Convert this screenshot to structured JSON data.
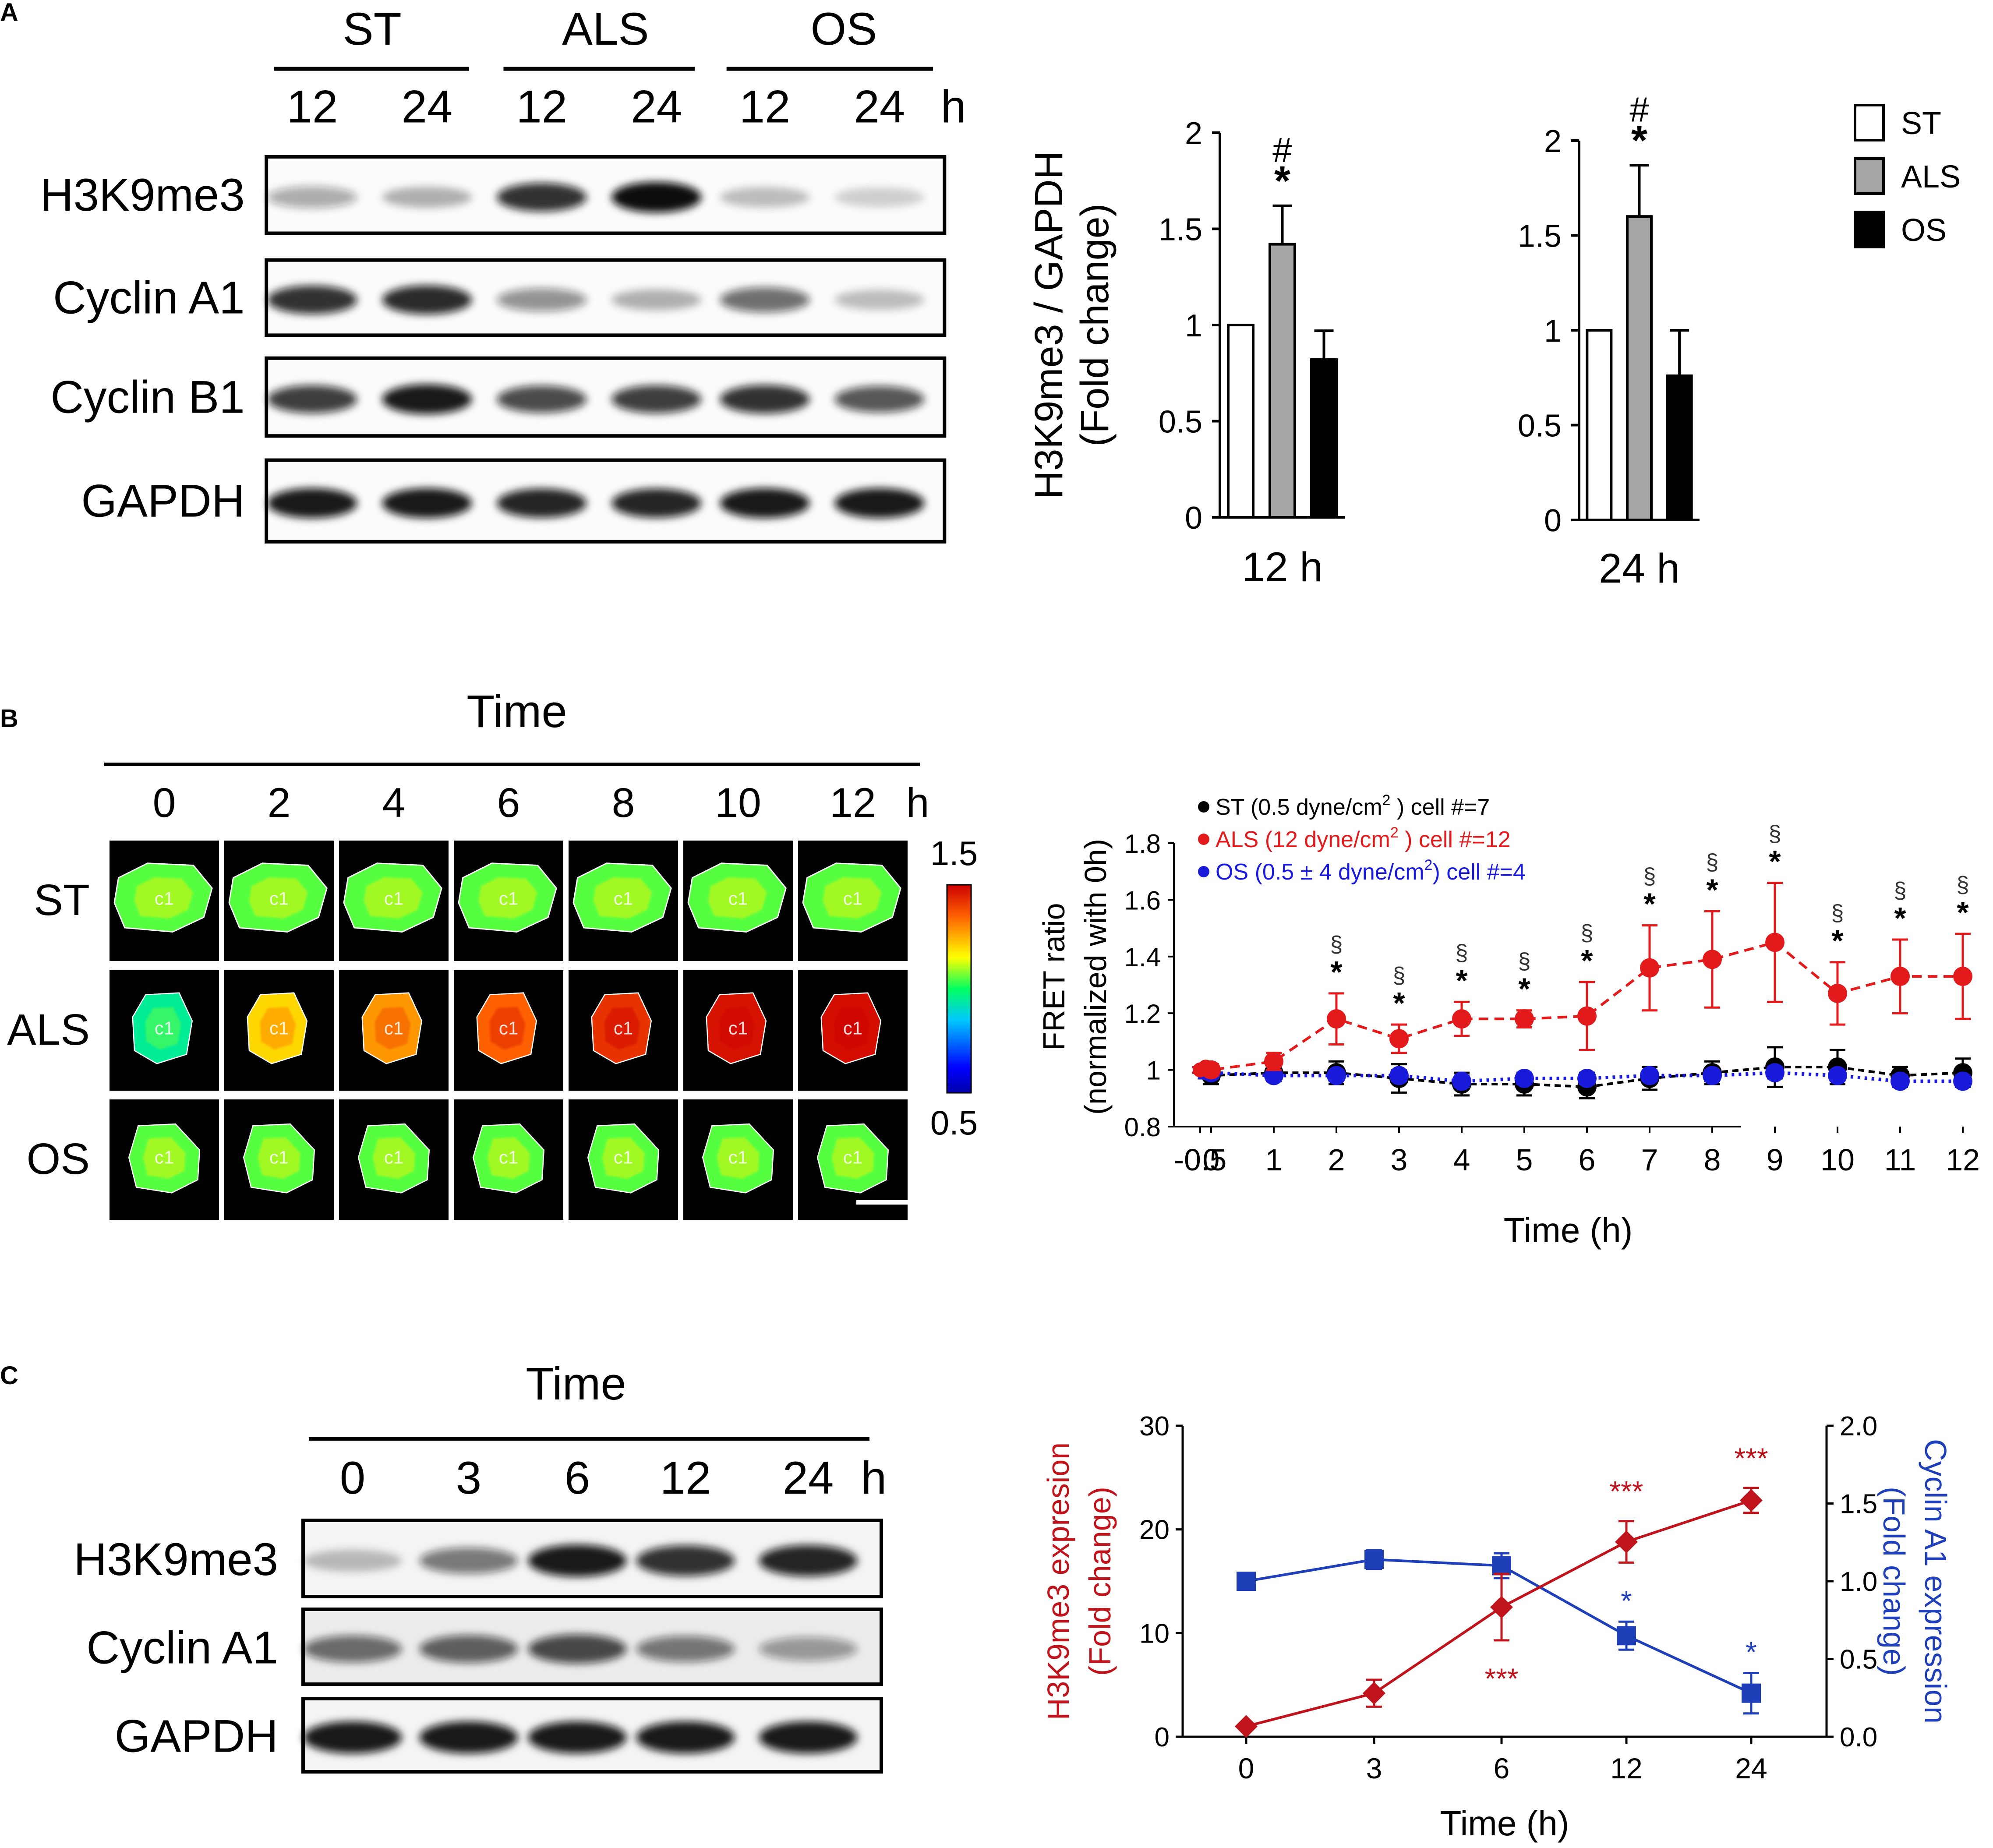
{
  "panels": {
    "a": "A",
    "b": "B",
    "c": "C"
  },
  "colors": {
    "st": "#ffffff",
    "als": "#a6a6a6",
    "os": "#000000",
    "red": "#e31a1c",
    "blue": "#1a1adb",
    "dred": "#c0141c",
    "dblue": "#1f3fb8"
  },
  "blotA": {
    "groups": [
      "ST",
      "ALS",
      "OS"
    ],
    "times": [
      "12",
      "24",
      "12",
      "24",
      "12",
      "24"
    ],
    "unit": "h",
    "rows": [
      "H3K9me3",
      "Cyclin A1",
      "Cyclin B1",
      "GAPDH"
    ],
    "intensity": {
      "H3K9me3": [
        0.35,
        0.3,
        0.85,
        1.0,
        0.25,
        0.18
      ],
      "Cyclin A1": [
        0.85,
        0.88,
        0.45,
        0.3,
        0.6,
        0.25
      ],
      "Cyclin B1": [
        0.8,
        0.95,
        0.75,
        0.8,
        0.85,
        0.7
      ],
      "GAPDH": [
        0.95,
        0.95,
        0.9,
        0.9,
        0.95,
        0.95
      ]
    }
  },
  "legendA": [
    "ST",
    "ALS",
    "OS"
  ],
  "ylabelA": [
    "H3K9me3 / GAPDH",
    "(Fold change)"
  ],
  "chart_data": [
    {
      "type": "bar",
      "id": "a12",
      "xlabel": "12 h",
      "ylabel": "H3K9me3 / GAPDH (Fold change)",
      "categories": [
        "ST",
        "ALS",
        "OS"
      ],
      "values": [
        1.0,
        1.42,
        0.82
      ],
      "errors": [
        0,
        0.2,
        0.15
      ],
      "ylim": [
        0,
        2
      ],
      "yticks": [
        "0",
        "0.5",
        "1",
        "1.5",
        "2"
      ],
      "annotations": {
        "ALS": [
          "#",
          "*"
        ]
      }
    },
    {
      "type": "bar",
      "id": "a24",
      "xlabel": "24 h",
      "categories": [
        "ST",
        "ALS",
        "OS"
      ],
      "values": [
        1.0,
        1.6,
        0.76
      ],
      "errors": [
        0,
        0.27,
        0.24
      ],
      "ylim": [
        0,
        2
      ],
      "yticks": [
        "0",
        "0.5",
        "1",
        "1.5",
        "2"
      ],
      "annotations": {
        "ALS": [
          "#",
          "*"
        ]
      }
    },
    {
      "type": "line",
      "id": "b",
      "xlabel": "Time (h)",
      "ylabel": [
        "FRET ratio",
        "(normalized with 0h)"
      ],
      "x_ticks": [
        "-0.5",
        "0",
        "1",
        "2",
        "3",
        "4",
        "5",
        "6",
        "7",
        "8",
        "9",
        "10",
        "11",
        "12"
      ],
      "ylim": [
        0.8,
        1.8
      ],
      "yticks": [
        "0.8",
        "1",
        "1.2",
        "1.4",
        "1.6",
        "1.8"
      ],
      "series": [
        {
          "name": "ST",
          "legend": [
            "ST (0.5 dyne/cm",
            "2",
            " ) cell #=7"
          ],
          "x": [
            -0.5,
            -0.25,
            0,
            1,
            2,
            3,
            4,
            5,
            6,
            7,
            8,
            9,
            10,
            11,
            12
          ],
          "y": [
            1.0,
            1.0,
            0.98,
            0.99,
            0.99,
            0.97,
            0.95,
            0.95,
            0.94,
            0.97,
            0.99,
            1.01,
            1.01,
            0.98,
            0.99
          ],
          "err": [
            0.01,
            0.02,
            0.03,
            0.03,
            0.04,
            0.05,
            0.04,
            0.04,
            0.04,
            0.04,
            0.04,
            0.07,
            0.06,
            0.03,
            0.05
          ]
        },
        {
          "name": "ALS",
          "legend": [
            "ALS (12 dyne/cm",
            "2",
            " ) cell #=12"
          ],
          "x": [
            -0.5,
            -0.25,
            0,
            1,
            2,
            3,
            4,
            5,
            6,
            7,
            8,
            9,
            10,
            11,
            12
          ],
          "y": [
            1.0,
            1.01,
            1.0,
            1.03,
            1.18,
            1.11,
            1.18,
            1.18,
            1.19,
            1.36,
            1.39,
            1.45,
            1.27,
            1.33,
            1.33
          ],
          "err": [
            0.01,
            0.01,
            0.02,
            0.03,
            0.09,
            0.05,
            0.06,
            0.03,
            0.12,
            0.15,
            0.17,
            0.21,
            0.11,
            0.13,
            0.15
          ]
        },
        {
          "name": "OS",
          "legend": [
            "OS (0.5 ± 4 dyne/cm",
            "2",
            ") cell #=4"
          ],
          "x": [
            -0.5,
            -0.25,
            0,
            1,
            2,
            3,
            4,
            5,
            6,
            7,
            8,
            9,
            10,
            11,
            12
          ],
          "y": [
            1.0,
            0.99,
            0.99,
            0.98,
            0.98,
            0.98,
            0.96,
            0.97,
            0.97,
            0.98,
            0.98,
            0.99,
            0.98,
            0.96,
            0.96
          ],
          "err": [
            0.01,
            0.02,
            0.02,
            0.02,
            0.02,
            0.02,
            0.02,
            0.02,
            0.02,
            0.02,
            0.02,
            0.02,
            0.02,
            0.02,
            0.02
          ]
        }
      ],
      "significance": {
        "x": [
          2,
          3,
          4,
          5,
          6,
          7,
          8,
          9,
          10,
          11,
          12
        ],
        "marks": [
          "§",
          "*"
        ]
      }
    },
    {
      "type": "line",
      "id": "c",
      "xlabel": "Time (h)",
      "categories": [
        "0",
        "3",
        "6",
        "12",
        "24"
      ],
      "ylabel_left": [
        "H3K9me3 expresion",
        "(Fold change)"
      ],
      "ylabel_right": [
        "Cyclin A1 expression",
        "(Fold change)"
      ],
      "ylim_left": [
        0,
        30
      ],
      "yticks_left": [
        "0",
        "10",
        "20",
        "30"
      ],
      "ylim_right": [
        0,
        2
      ],
      "yticks_right": [
        "0.0",
        "0.5",
        "1.0",
        "1.5",
        "2.0"
      ],
      "series": [
        {
          "name": "H3K9me3",
          "axis": "left",
          "values": [
            1,
            4.2,
            12.5,
            18.8,
            22.8
          ],
          "err": [
            0,
            1.3,
            3.2,
            2.0,
            1.2
          ]
        },
        {
          "name": "Cyclin A1",
          "axis": "right",
          "values": [
            1.0,
            1.14,
            1.1,
            0.65,
            0.28
          ],
          "err": [
            0,
            0.06,
            0.08,
            0.09,
            0.13
          ]
        }
      ],
      "annotations": {
        "red": [
          {
            "x": "6",
            "text": "***",
            "pos": "below"
          },
          {
            "x": "12",
            "text": "***",
            "pos": "above"
          },
          {
            "x": "24",
            "text": "***",
            "pos": "above"
          }
        ],
        "blue": [
          {
            "x": "12",
            "text": "*"
          },
          {
            "x": "24",
            "text": "*"
          }
        ]
      }
    }
  ],
  "panelB": {
    "title": "Time",
    "times": [
      "0",
      "2",
      "4",
      "6",
      "8",
      "10",
      "12"
    ],
    "unit": "h",
    "rows": [
      "ST",
      "ALS",
      "OS"
    ],
    "cell_label": "c1",
    "colorbar": {
      "max": "1.5",
      "min": "0.5"
    },
    "ratio": {
      "ST": [
        0.55,
        0.55,
        0.55,
        0.55,
        0.55,
        0.55,
        0.55
      ],
      "ALS": [
        0.45,
        0.7,
        0.78,
        0.85,
        0.92,
        0.97,
        0.98
      ],
      "OS": [
        0.55,
        0.55,
        0.55,
        0.55,
        0.55,
        0.55,
        0.55
      ]
    }
  },
  "panelC": {
    "title": "Time",
    "times": [
      "0",
      "3",
      "6",
      "12",
      "24"
    ],
    "unit": "h",
    "rows": [
      "H3K9me3",
      "Cyclin A1",
      "GAPDH"
    ],
    "intensity": {
      "H3K9me3": [
        0.25,
        0.55,
        0.95,
        0.85,
        0.9
      ],
      "Cyclin A1": [
        0.6,
        0.65,
        0.75,
        0.55,
        0.4
      ],
      "GAPDH": [
        0.95,
        0.95,
        0.95,
        0.95,
        0.95
      ]
    }
  }
}
